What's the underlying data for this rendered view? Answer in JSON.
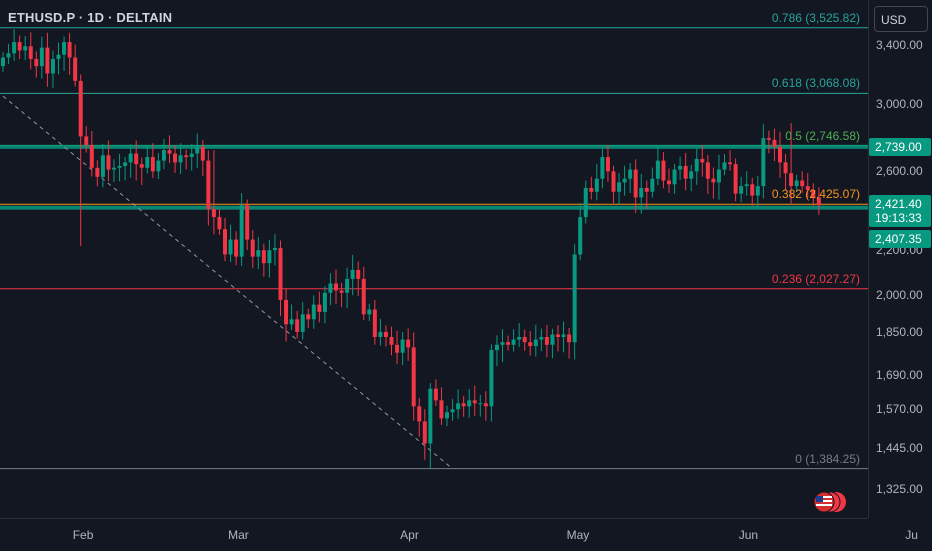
{
  "header": {
    "symbol": "ETHUSD.P · 1D · DELTAIN"
  },
  "axis": {
    "currency": "USD",
    "price_ticks": [
      {
        "label": "3,400.00",
        "value": 3400
      },
      {
        "label": "3,000.00",
        "value": 3000
      },
      {
        "label": "2,600.00",
        "value": 2600
      },
      {
        "label": "2,200.00",
        "value": 2200
      },
      {
        "label": "2,000.00",
        "value": 2000
      },
      {
        "label": "1,850.00",
        "value": 1850
      },
      {
        "label": "1,690.00",
        "value": 1690
      },
      {
        "label": "1,570.00",
        "value": 1570
      },
      {
        "label": "1,445.00",
        "value": 1445
      },
      {
        "label": "1,325.00",
        "value": 1325
      }
    ],
    "time_ticks": [
      {
        "label": "Feb",
        "index": 14
      },
      {
        "label": "Mar",
        "index": 42
      },
      {
        "label": "Apr",
        "index": 73
      },
      {
        "label": "May",
        "index": 103
      },
      {
        "label": "Jun",
        "index": 134
      },
      {
        "label": "Ju",
        "index": 164
      }
    ]
  },
  "price_tags": {
    "resistance": {
      "label": "2,739.00",
      "value": 2739,
      "color": "#089981"
    },
    "current": {
      "label": "2,421.40",
      "value": 2421.4,
      "countdown": "19:13:33",
      "color": "#089981"
    },
    "support": {
      "label": "2,407.35",
      "value": 2407.35,
      "color": "#089981"
    }
  },
  "colors": {
    "up": "#089981",
    "down": "#f23645",
    "background": "#131722"
  },
  "fib_levels": [
    {
      "label": "0.786 (3,525.82)",
      "value": 3525.82,
      "color": "#26a69a"
    },
    {
      "label": "0.618 (3,068.08)",
      "value": 3068.08,
      "color": "#26a69a"
    },
    {
      "label": "0.5 (2,746.58)",
      "value": 2746.58,
      "color": "#4caf50"
    },
    {
      "label": "0.382 (2,425.07)",
      "value": 2425.07,
      "color": "#f7931a"
    },
    {
      "label": "0.236 (2,027.27)",
      "value": 2027.27,
      "color": "#f23645"
    },
    {
      "label": "0 (1,384.25)",
      "value": 1384.25,
      "color": "#787b86"
    }
  ],
  "chart_data": {
    "type": "candlestick",
    "symbol": "ETHUSD.P",
    "interval": "1D",
    "log_scale": true,
    "ylim": [
      1260,
      3700
    ],
    "trendline": {
      "from": {
        "index": 0,
        "price": 3050
      },
      "to": {
        "index": 81,
        "price": 1384
      }
    },
    "candles": []
  }
}
